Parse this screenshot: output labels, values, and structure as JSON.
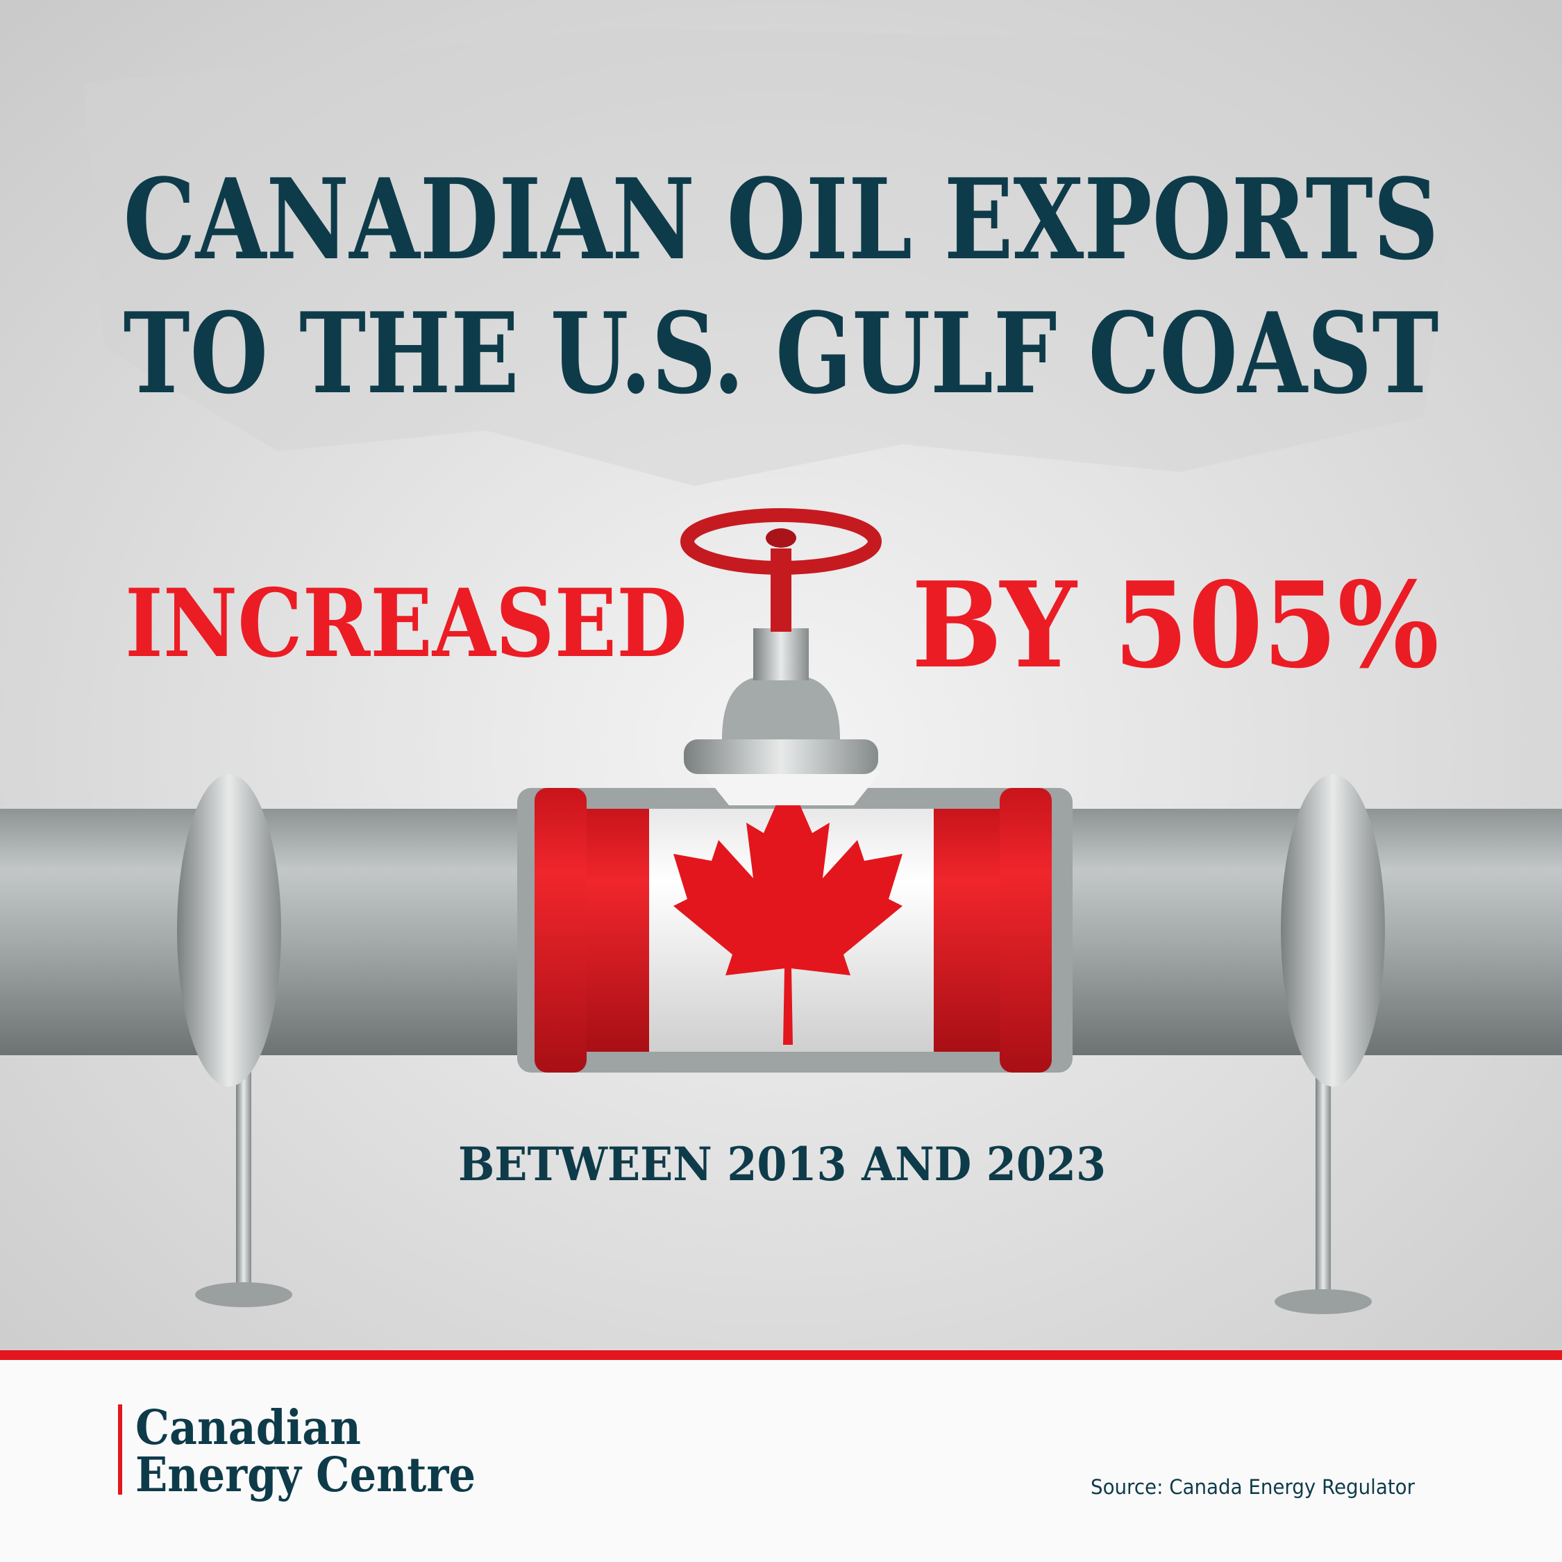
{
  "header": {
    "title_lines": [
      "CANADIAN OIL EXPORTS",
      "TO THE U.S. GULF COAST"
    ]
  },
  "headline": {
    "left": "INCREASED",
    "right": "BY 505%"
  },
  "subtitle": "BETWEEN 2013 AND 2023",
  "footer": {
    "logo_lines": [
      "Canadian",
      "Energy Centre"
    ],
    "source": "Source: Canada Energy Regulator"
  }
}
